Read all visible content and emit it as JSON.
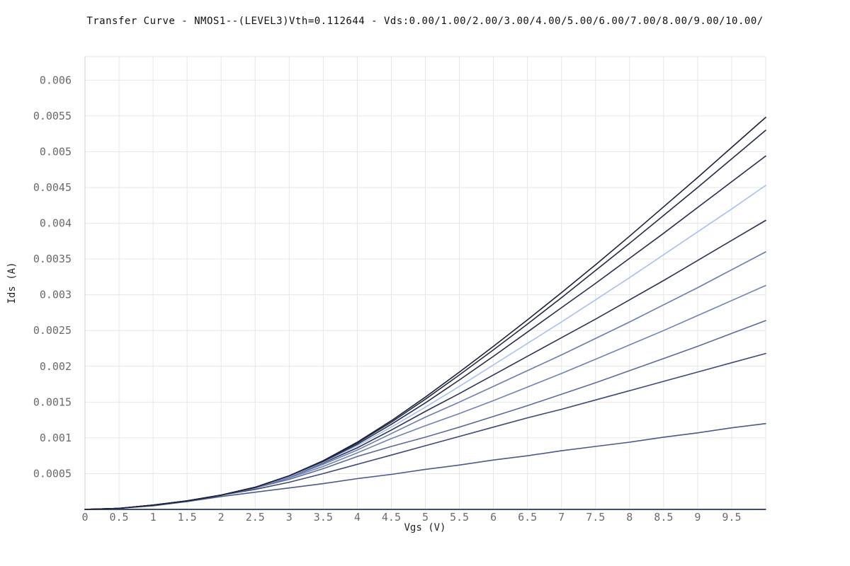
{
  "chart_data": {
    "type": "line",
    "title": "Transfer Curve - NMOS1--(LEVEL3)Vth=0.112644 - Vds:0.00/1.00/2.00/3.00/4.00/5.00/6.00/7.00/8.00/9.00/10.00/",
    "xlabel": "Vgs (V)",
    "ylabel": "Ids (A)",
    "xlim": [
      0,
      10
    ],
    "ylim": [
      0,
      0.00633
    ],
    "x_ticks": [
      "0",
      "0.5",
      "1",
      "1.5",
      "2",
      "2.5",
      "3",
      "3.5",
      "4",
      "4.5",
      "5",
      "5.5",
      "6",
      "6.5",
      "7",
      "7.5",
      "8",
      "8.5",
      "9",
      "9.5"
    ],
    "y_ticks": [
      "0.0005",
      "0.001",
      "0.0015",
      "0.002",
      "0.0025",
      "0.003",
      "0.0035",
      "0.004",
      "0.0045",
      "0.005",
      "0.0055",
      "0.006"
    ],
    "grid": true,
    "legend": "none",
    "x": [
      0,
      0.5,
      1,
      1.5,
      2,
      2.5,
      3,
      3.5,
      4,
      4.5,
      5,
      5.5,
      6,
      6.5,
      7,
      7.5,
      8,
      8.5,
      9,
      9.5,
      10
    ],
    "series": [
      {
        "color": "#3a4a7a",
        "values": [
          0,
          0,
          0,
          0,
          0,
          0,
          0,
          0,
          0,
          0,
          0,
          0,
          0,
          0,
          0,
          0,
          0,
          0,
          0,
          0,
          0
        ]
      },
      {
        "color": "#4a5a8a",
        "values": [
          0,
          1.5e-05,
          5e-05,
          0.00011,
          0.00018,
          0.00024,
          0.0003,
          0.00036,
          0.00043,
          0.00049,
          0.00056,
          0.00062,
          0.00069,
          0.00075,
          0.00082,
          0.00088,
          0.00094,
          0.00101,
          0.00107,
          0.00114,
          0.0012
        ]
      },
      {
        "color": "#3c4878",
        "values": [
          0,
          1.5e-05,
          6e-05,
          0.00012,
          0.0002,
          0.00028,
          0.00038,
          0.0005,
          0.00063,
          0.00076,
          0.00089,
          0.00102,
          0.00115,
          0.00128,
          0.0014,
          0.00153,
          0.00166,
          0.00179,
          0.00192,
          0.00205,
          0.00218
        ]
      },
      {
        "color": "#5a6a9a",
        "values": [
          0,
          1.5e-05,
          6e-05,
          0.00012,
          0.0002,
          0.0003,
          0.00042,
          0.00057,
          0.00074,
          0.00088,
          0.00101,
          0.00115,
          0.0013,
          0.00145,
          0.00161,
          0.00177,
          0.00194,
          0.00211,
          0.00228,
          0.00246,
          0.00264
        ]
      },
      {
        "color": "#6e82b4",
        "values": [
          0,
          1.5e-05,
          6e-05,
          0.00012,
          0.0002,
          0.0003,
          0.00044,
          0.0006,
          0.00079,
          0.00099,
          0.00117,
          0.00134,
          0.00152,
          0.00171,
          0.0019,
          0.0021,
          0.0023,
          0.0025,
          0.00271,
          0.00292,
          0.00313
        ]
      },
      {
        "color": "#6a7cae",
        "values": [
          0,
          1.5e-05,
          6e-05,
          0.00012,
          0.0002,
          0.0003,
          0.00045,
          0.00063,
          0.00083,
          0.00106,
          0.00129,
          0.0015,
          0.00172,
          0.00194,
          0.00216,
          0.00239,
          0.00262,
          0.00286,
          0.0031,
          0.00335,
          0.0036
        ]
      },
      {
        "color": "#2c3356",
        "values": [
          0,
          1.5e-05,
          6e-05,
          0.00012,
          0.0002,
          0.00031,
          0.00046,
          0.00065,
          0.00086,
          0.00111,
          0.00137,
          0.00162,
          0.00188,
          0.00214,
          0.0024,
          0.00266,
          0.00293,
          0.0032,
          0.00348,
          0.00376,
          0.00404
        ]
      },
      {
        "color": "#a8c0ee",
        "values": [
          0,
          1.5e-05,
          6e-05,
          0.00012,
          0.0002,
          0.00031,
          0.00046,
          0.00066,
          0.00089,
          0.00115,
          0.00143,
          0.00172,
          0.00202,
          0.00232,
          0.00262,
          0.00293,
          0.00324,
          0.00356,
          0.00388,
          0.0042,
          0.00453
        ]
      },
      {
        "color": "#262d4c",
        "values": [
          0,
          1.5e-05,
          6e-05,
          0.00012,
          0.0002,
          0.00031,
          0.00047,
          0.00067,
          0.00091,
          0.00119,
          0.00149,
          0.00181,
          0.00214,
          0.00248,
          0.00282,
          0.00316,
          0.00351,
          0.00386,
          0.00422,
          0.00458,
          0.00494
        ]
      },
      {
        "color": "#242a44",
        "values": [
          0,
          1.5e-05,
          6e-05,
          0.00012,
          0.0002,
          0.00031,
          0.00047,
          0.00068,
          0.00093,
          0.00122,
          0.00154,
          0.00188,
          0.00223,
          0.00259,
          0.00296,
          0.00334,
          0.00372,
          0.00411,
          0.0045,
          0.0049,
          0.0053
        ]
      },
      {
        "color": "#1c2038",
        "values": [
          0,
          1.5e-05,
          6e-05,
          0.00012,
          0.0002,
          0.00031,
          0.00047,
          0.00068,
          0.00094,
          0.00124,
          0.00157,
          0.00192,
          0.00228,
          0.00265,
          0.00303,
          0.00342,
          0.00382,
          0.00423,
          0.00464,
          0.00506,
          0.00548
        ]
      }
    ]
  }
}
